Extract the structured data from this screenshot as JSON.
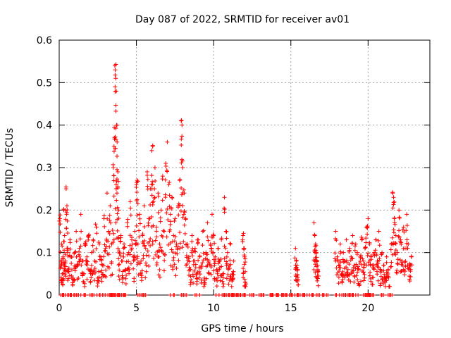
{
  "chart_data": {
    "type": "scatter",
    "title": "Day 087 of 2022, SRMTID for receiver av01",
    "xlabel": "GPS time / hours",
    "ylabel": "SRMTID / TECUs",
    "xlim": [
      0,
      24
    ],
    "ylim": [
      0,
      0.6
    ],
    "grid": true,
    "marker": "+",
    "color": "#ff0000",
    "x_ticks": [
      0,
      5,
      10,
      15,
      20
    ],
    "x_tick_labels": [
      "0",
      "5",
      "10",
      "15",
      "20"
    ],
    "y_ticks": [
      0,
      0.1,
      0.2,
      0.3,
      0.4,
      0.5,
      0.6
    ],
    "y_tick_labels": [
      "0",
      "0.1",
      "0.2",
      "0.3",
      "0.4",
      "0.5",
      "0.6"
    ],
    "series": [
      {
        "name": "SRMTID av01",
        "note": "Dense cloud of several thousand points; values below are a representative profile of the observed data (hour, TECU).",
        "points": [
          [
            0.05,
            0.18
          ],
          [
            0.1,
            0.07
          ],
          [
            0.15,
            0.12
          ],
          [
            0.2,
            0.05
          ],
          [
            0.25,
            0.09
          ],
          [
            0.3,
            0.2
          ],
          [
            0.35,
            0.14
          ],
          [
            0.4,
            0.08
          ],
          [
            0.45,
            0.25
          ],
          [
            0.5,
            0.21
          ],
          [
            0.55,
            0.11
          ],
          [
            0.6,
            0.06
          ],
          [
            0.7,
            0.13
          ],
          [
            0.8,
            0.09
          ],
          [
            0.9,
            0.04
          ],
          [
            1.0,
            0.1
          ],
          [
            1.1,
            0.15
          ],
          [
            1.2,
            0.07
          ],
          [
            1.3,
            0.11
          ],
          [
            1.4,
            0.19
          ],
          [
            1.5,
            0.08
          ],
          [
            1.6,
            0.05
          ],
          [
            1.7,
            0.12
          ],
          [
            1.8,
            0.09
          ],
          [
            1.9,
            0.14
          ],
          [
            2.0,
            0.06
          ],
          [
            2.1,
            0.1
          ],
          [
            2.2,
            0.13
          ],
          [
            2.3,
            0.08
          ],
          [
            2.4,
            0.16
          ],
          [
            2.5,
            0.04
          ],
          [
            2.6,
            0.12
          ],
          [
            2.7,
            0.09
          ],
          [
            2.8,
            0.07
          ],
          [
            2.9,
            0.18
          ],
          [
            3.0,
            0.11
          ],
          [
            3.1,
            0.24
          ],
          [
            3.2,
            0.15
          ],
          [
            3.3,
            0.21
          ],
          [
            3.4,
            0.12
          ],
          [
            3.5,
            0.3
          ],
          [
            3.55,
            0.35
          ],
          [
            3.6,
            0.54
          ],
          [
            3.63,
            0.53
          ],
          [
            3.66,
            0.51
          ],
          [
            3.7,
            0.48
          ],
          [
            3.72,
            0.4
          ],
          [
            3.75,
            0.36
          ],
          [
            3.8,
            0.29
          ],
          [
            3.85,
            0.2
          ],
          [
            3.9,
            0.1
          ],
          [
            4.0,
            0.14
          ],
          [
            4.1,
            0.08
          ],
          [
            4.2,
            0.12
          ],
          [
            4.3,
            0.06
          ],
          [
            4.4,
            0.17
          ],
          [
            4.5,
            0.1
          ],
          [
            4.6,
            0.22
          ],
          [
            4.7,
            0.13
          ],
          [
            4.8,
            0.09
          ],
          [
            4.9,
            0.15
          ],
          [
            5.0,
            0.26
          ],
          [
            5.05,
            0.27
          ],
          [
            5.1,
            0.12
          ],
          [
            5.2,
            0.19
          ],
          [
            5.3,
            0.08
          ],
          [
            5.4,
            0.14
          ],
          [
            5.5,
            0.21
          ],
          [
            5.6,
            0.11
          ],
          [
            5.7,
            0.29
          ],
          [
            5.8,
            0.18
          ],
          [
            5.9,
            0.25
          ],
          [
            6.0,
            0.34
          ],
          [
            6.05,
            0.35
          ],
          [
            6.1,
            0.22
          ],
          [
            6.2,
            0.3
          ],
          [
            6.3,
            0.16
          ],
          [
            6.4,
            0.24
          ],
          [
            6.5,
            0.12
          ],
          [
            6.6,
            0.2
          ],
          [
            6.7,
            0.28
          ],
          [
            6.8,
            0.15
          ],
          [
            6.9,
            0.31
          ],
          [
            7.0,
            0.36
          ],
          [
            7.1,
            0.26
          ],
          [
            7.2,
            0.19
          ],
          [
            7.3,
            0.23
          ],
          [
            7.4,
            0.14
          ],
          [
            7.5,
            0.18
          ],
          [
            7.6,
            0.12
          ],
          [
            7.7,
            0.21
          ],
          [
            7.8,
            0.27
          ],
          [
            7.9,
            0.41
          ],
          [
            7.95,
            0.4
          ],
          [
            8.0,
            0.3
          ],
          [
            8.1,
            0.24
          ],
          [
            8.2,
            0.18
          ],
          [
            8.3,
            0.12
          ],
          [
            8.4,
            0.09
          ],
          [
            8.5,
            0.06
          ],
          [
            8.6,
            0.14
          ],
          [
            8.7,
            0.08
          ],
          [
            8.8,
            0.11
          ],
          [
            8.9,
            0.05
          ],
          [
            9.0,
            0.13
          ],
          [
            9.1,
            0.09
          ],
          [
            9.2,
            0.07
          ],
          [
            9.3,
            0.15
          ],
          [
            9.4,
            0.04
          ],
          [
            9.5,
            0.1
          ],
          [
            9.6,
            0.17
          ],
          [
            9.7,
            0.08
          ],
          [
            9.8,
            0.12
          ],
          [
            9.9,
            0.19
          ],
          [
            10.0,
            0.14
          ],
          [
            10.1,
            0.09
          ],
          [
            10.2,
            0.06
          ],
          [
            10.3,
            0.11
          ],
          [
            10.4,
            0.08
          ],
          [
            10.5,
            0.13
          ],
          [
            10.6,
            0.05
          ],
          [
            10.7,
            0.23
          ],
          [
            10.8,
            0.15
          ],
          [
            10.9,
            0.1
          ],
          [
            11.0,
            0.07
          ],
          [
            11.1,
            0.12
          ],
          [
            11.2,
            0.05
          ],
          [
            11.3,
            0.08
          ],
          [
            11.9,
            0.14
          ],
          [
            11.95,
            0.11
          ],
          [
            12.0,
            0.09
          ],
          [
            12.05,
            0.03
          ],
          [
            15.3,
            0.11
          ],
          [
            15.35,
            0.08
          ],
          [
            15.4,
            0.07
          ],
          [
            15.45,
            0.06
          ],
          [
            16.5,
            0.17
          ],
          [
            16.55,
            0.14
          ],
          [
            16.6,
            0.12
          ],
          [
            16.65,
            0.1
          ],
          [
            16.7,
            0.08
          ],
          [
            16.75,
            0.06
          ],
          [
            17.9,
            0.15
          ],
          [
            18.0,
            0.09
          ],
          [
            18.1,
            0.07
          ],
          [
            18.2,
            0.12
          ],
          [
            18.3,
            0.05
          ],
          [
            18.4,
            0.1
          ],
          [
            18.5,
            0.08
          ],
          [
            18.6,
            0.13
          ],
          [
            18.7,
            0.06
          ],
          [
            18.8,
            0.11
          ],
          [
            18.9,
            0.09
          ],
          [
            19.0,
            0.14
          ],
          [
            19.1,
            0.07
          ],
          [
            19.2,
            0.12
          ],
          [
            19.3,
            0.1
          ],
          [
            19.4,
            0.06
          ],
          [
            19.5,
            0.09
          ],
          [
            19.6,
            0.13
          ],
          [
            19.7,
            0.08
          ],
          [
            19.8,
            0.11
          ],
          [
            19.9,
            0.16
          ],
          [
            20.0,
            0.18
          ],
          [
            20.1,
            0.12
          ],
          [
            20.2,
            0.09
          ],
          [
            20.3,
            0.07
          ],
          [
            20.4,
            0.1
          ],
          [
            20.5,
            0.13
          ],
          [
            20.6,
            0.08
          ],
          [
            20.7,
            0.15
          ],
          [
            20.8,
            0.06
          ],
          [
            20.9,
            0.1
          ],
          [
            21.0,
            0.07
          ],
          [
            21.1,
            0.04
          ],
          [
            21.2,
            0.09
          ],
          [
            21.3,
            0.06
          ],
          [
            21.4,
            0.02
          ],
          [
            21.5,
            0.12
          ],
          [
            21.6,
            0.24
          ],
          [
            21.65,
            0.23
          ],
          [
            21.7,
            0.18
          ],
          [
            21.8,
            0.14
          ],
          [
            21.9,
            0.1
          ],
          [
            22.0,
            0.2
          ],
          [
            22.1,
            0.13
          ],
          [
            22.2,
            0.08
          ],
          [
            22.3,
            0.16
          ],
          [
            22.4,
            0.11
          ],
          [
            22.5,
            0.19
          ],
          [
            22.6,
            0.12
          ],
          [
            22.7,
            0.07
          ],
          [
            22.8,
            0.09
          ]
        ]
      }
    ],
    "zero_band": [
      [
        0,
        4.3
      ],
      [
        5.1,
        5.6
      ],
      [
        7.2,
        7.5
      ],
      [
        7.9,
        8.3
      ],
      [
        8.8,
        9.3
      ],
      [
        10.1,
        12.0
      ],
      [
        12.0,
        15.8
      ],
      [
        15.8,
        17.5
      ],
      [
        17.9,
        19.4
      ],
      [
        19.7,
        20.4
      ],
      [
        20.8,
        21.6
      ]
    ]
  }
}
